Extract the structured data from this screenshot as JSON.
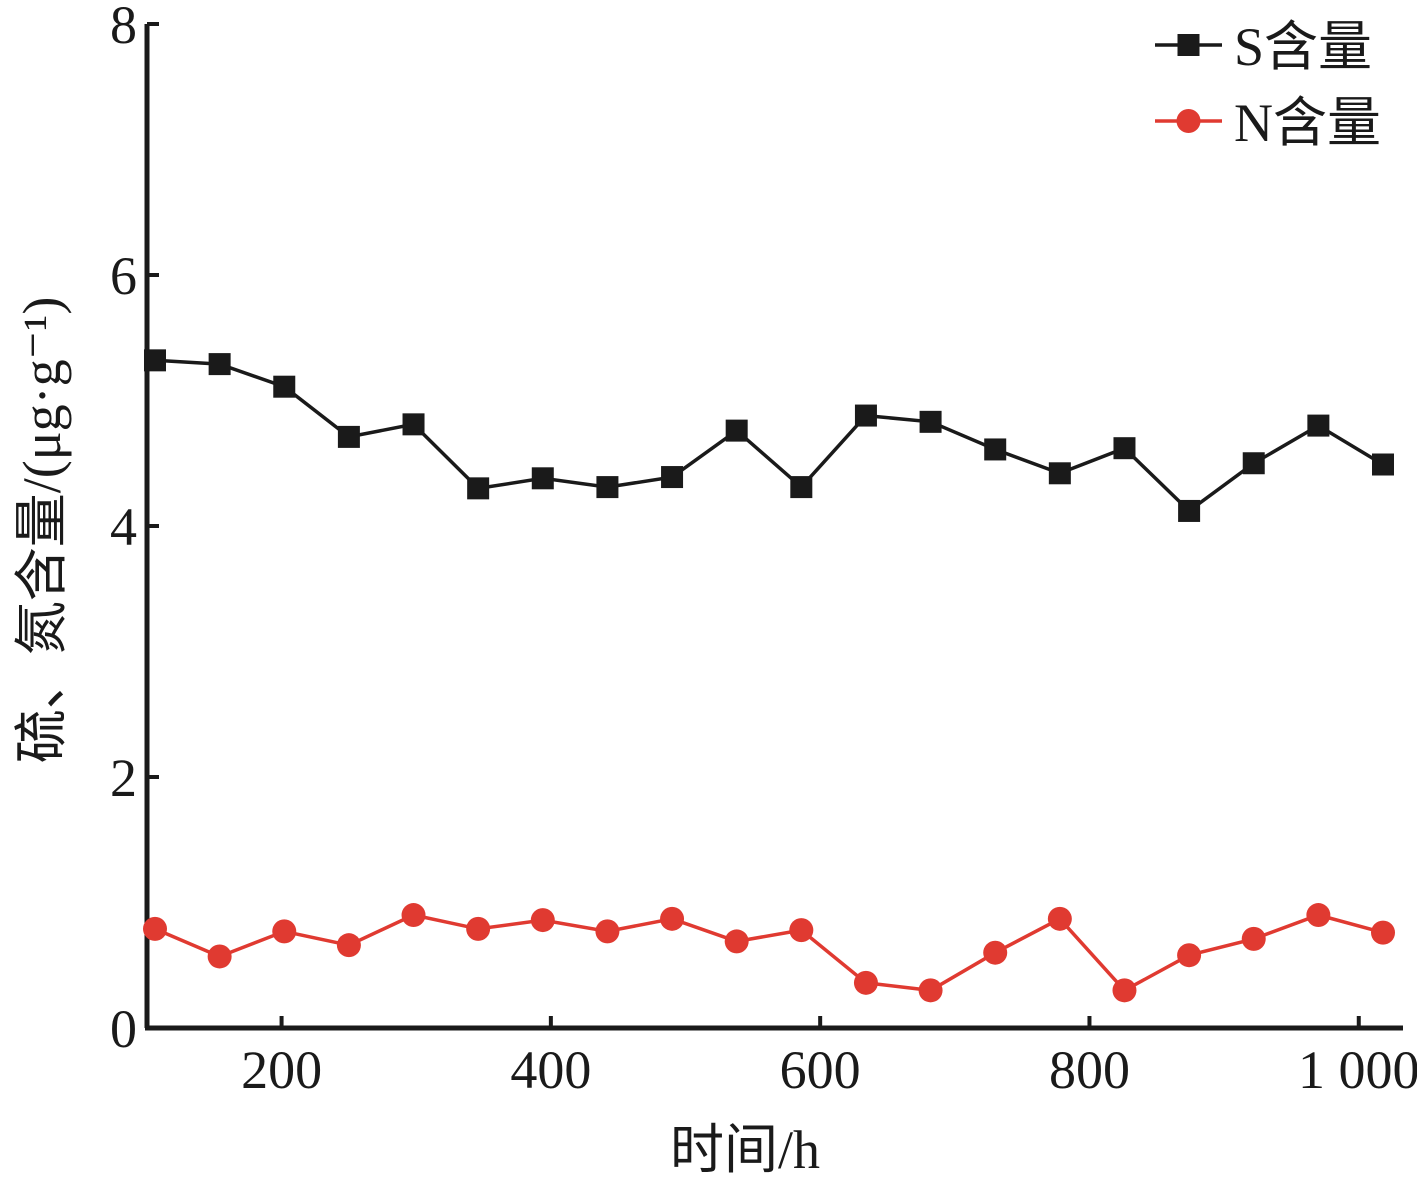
{
  "chart_data": {
    "type": "line",
    "xlabel": "时间/h",
    "ylabel": "硫、氮含量/(μg·g⁻¹)",
    "xlim": [
      100,
      1020
    ],
    "ylim": [
      0,
      8
    ],
    "xticks": [
      200,
      400,
      600,
      800,
      1000
    ],
    "xtick_labels": [
      "200",
      "400",
      "600",
      "800",
      "1 000"
    ],
    "yticks": [
      0,
      2,
      4,
      6,
      8
    ],
    "ytick_labels": [
      "0",
      "2",
      "4",
      "6",
      "8"
    ],
    "legend_position": "top-right",
    "grid": false,
    "x": [
      106,
      154,
      202,
      250,
      298,
      346,
      394,
      442,
      490,
      538,
      586,
      634,
      682,
      730,
      778,
      826,
      874,
      922,
      970,
      1018
    ],
    "series": [
      {
        "name": "S含量",
        "color": "#1a1a1a",
        "marker": "square",
        "values": [
          5.32,
          5.29,
          5.11,
          4.71,
          4.81,
          4.3,
          4.38,
          4.31,
          4.39,
          4.76,
          4.31,
          4.88,
          4.83,
          4.61,
          4.42,
          4.62,
          4.12,
          4.5,
          4.8,
          4.49
        ]
      },
      {
        "name": "N含量",
        "color": "#e03a31",
        "marker": "circle",
        "values": [
          0.79,
          0.57,
          0.77,
          0.66,
          0.9,
          0.79,
          0.86,
          0.77,
          0.87,
          0.69,
          0.78,
          0.36,
          0.3,
          0.6,
          0.87,
          0.3,
          0.58,
          0.71,
          0.9,
          0.76
        ]
      }
    ]
  }
}
